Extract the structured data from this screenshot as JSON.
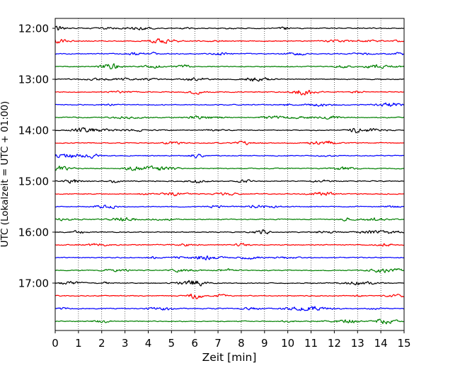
{
  "chart_data": {
    "type": "line",
    "chart_kind": "helicorder seismogram (stacked time-offset traces)",
    "xlabel": "Zeit  [min]",
    "ylabel": "UTC (Lokalzeit = UTC + 01:00)",
    "xlim": [
      0,
      15
    ],
    "x_ticks": [
      "0",
      "1",
      "2",
      "3",
      "4",
      "5",
      "6",
      "7",
      "8",
      "9",
      "10",
      "11",
      "12",
      "13",
      "14",
      "15"
    ],
    "y_ticks": [
      "12:00",
      "13:00",
      "14:00",
      "15:00",
      "16:00",
      "17:00"
    ],
    "vertical_grid": "dotted, at every minute",
    "horizontal_grid": false,
    "trace_interval_minutes": 15,
    "trace_colors": [
      "#000000",
      "#ff0000",
      "#0000ff",
      "#008000"
    ],
    "traces": [
      {
        "start": "12:00",
        "color": "#000000"
      },
      {
        "start": "12:15",
        "color": "#ff0000"
      },
      {
        "start": "12:30",
        "color": "#0000ff"
      },
      {
        "start": "12:45",
        "color": "#008000"
      },
      {
        "start": "13:00",
        "color": "#000000"
      },
      {
        "start": "13:15",
        "color": "#ff0000"
      },
      {
        "start": "13:30",
        "color": "#0000ff"
      },
      {
        "start": "13:45",
        "color": "#008000"
      },
      {
        "start": "14:00",
        "color": "#000000"
      },
      {
        "start": "14:15",
        "color": "#ff0000"
      },
      {
        "start": "14:30",
        "color": "#0000ff"
      },
      {
        "start": "14:45",
        "color": "#008000"
      },
      {
        "start": "15:00",
        "color": "#000000"
      },
      {
        "start": "15:15",
        "color": "#ff0000"
      },
      {
        "start": "15:30",
        "color": "#0000ff"
      },
      {
        "start": "15:45",
        "color": "#008000"
      },
      {
        "start": "16:00",
        "color": "#000000"
      },
      {
        "start": "16:15",
        "color": "#ff0000"
      },
      {
        "start": "16:30",
        "color": "#0000ff"
      },
      {
        "start": "16:45",
        "color": "#008000"
      },
      {
        "start": "17:00",
        "color": "#000000"
      },
      {
        "start": "17:15",
        "color": "#ff0000"
      },
      {
        "start": "17:30",
        "color": "#0000ff"
      },
      {
        "start": "17:45",
        "color": "#008000"
      }
    ]
  }
}
